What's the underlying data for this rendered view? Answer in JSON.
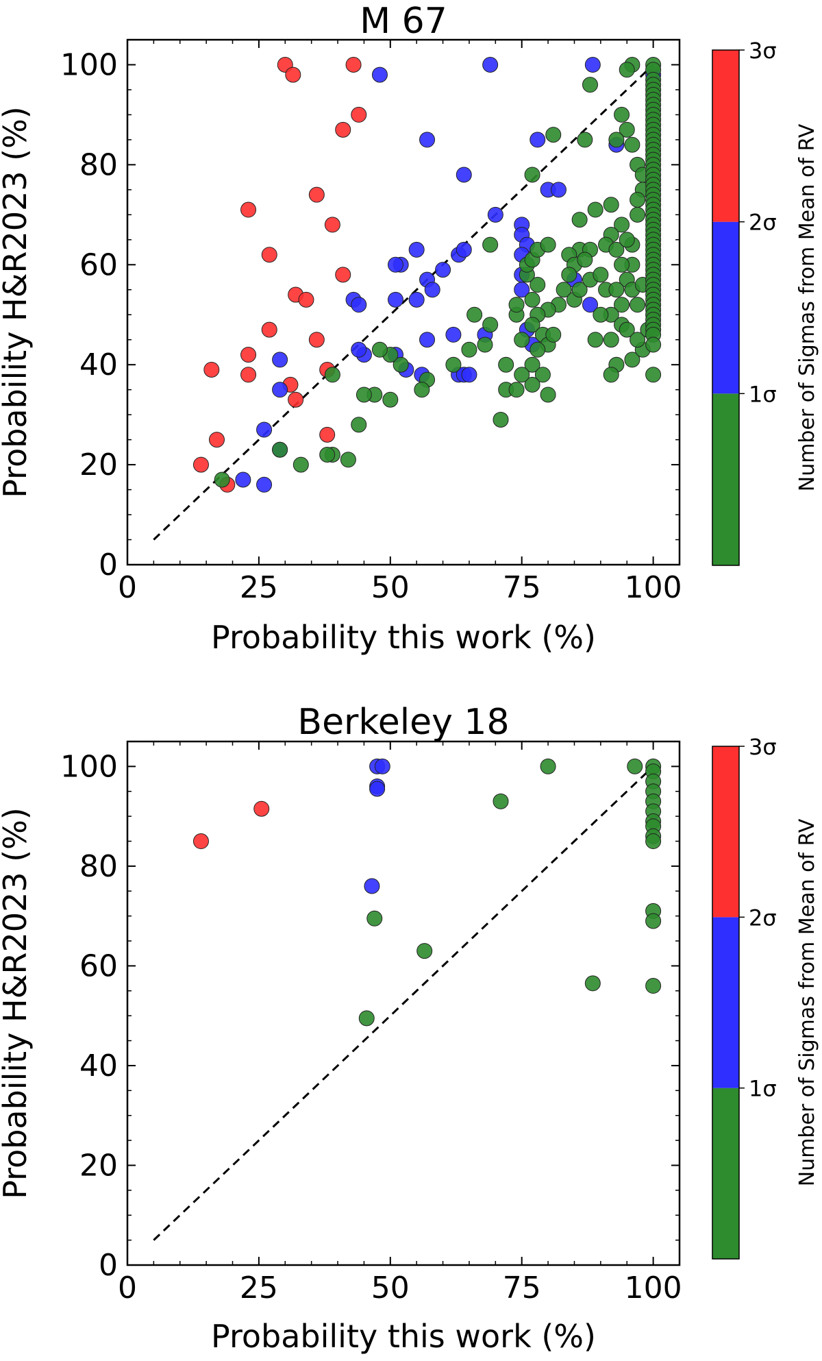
{
  "colors": {
    "green": "#2e8b2e",
    "blue": "#2f2fff",
    "red": "#ff3030",
    "axis": "#000000"
  },
  "chart_data": [
    {
      "type": "scatter",
      "title": "M 67",
      "xlabel": "Probability this work (%)",
      "ylabel": "Probability H&R2023 (%)",
      "xlim": [
        0,
        105
      ],
      "ylim": [
        0,
        105
      ],
      "xticks": [
        0,
        25,
        50,
        75,
        100
      ],
      "yticks": [
        0,
        20,
        40,
        60,
        80,
        100
      ],
      "reference_line": {
        "style": "dashed",
        "from": [
          5,
          5
        ],
        "to": [
          100,
          100
        ]
      },
      "colorbar": {
        "label": "Number of Sigmas from Mean of RV",
        "ticks": [
          "1σ",
          "2σ",
          "3σ"
        ],
        "bins": [
          {
            "color_key": "green",
            "range": "0–1σ"
          },
          {
            "color_key": "blue",
            "range": "1σ–2σ"
          },
          {
            "color_key": "red",
            "range": "2σ–3σ"
          }
        ]
      },
      "series": [
        {
          "name": "2σ–3σ",
          "color_key": "red",
          "points": [
            [
              30,
              100
            ],
            [
              31.5,
              98
            ],
            [
              43,
              100
            ],
            [
              44,
              90
            ],
            [
              41,
              87
            ],
            [
              36,
              74
            ],
            [
              23,
              71
            ],
            [
              27,
              62
            ],
            [
              39,
              68
            ],
            [
              32,
              54
            ],
            [
              34,
              53
            ],
            [
              41,
              58
            ],
            [
              27,
              47
            ],
            [
              36,
              45
            ],
            [
              16,
              39
            ],
            [
              23,
              42
            ],
            [
              23,
              38
            ],
            [
              38,
              39
            ],
            [
              31,
              36
            ],
            [
              32,
              33
            ],
            [
              38,
              26
            ],
            [
              17,
              25
            ],
            [
              14,
              20
            ],
            [
              19,
              16
            ]
          ]
        },
        {
          "name": "1σ–2σ",
          "color_key": "blue",
          "points": [
            [
              48,
              98
            ],
            [
              69,
              100
            ],
            [
              88.5,
              100
            ],
            [
              57,
              85
            ],
            [
              78,
              85
            ],
            [
              64,
              78
            ],
            [
              52,
              60
            ],
            [
              55,
              63
            ],
            [
              51,
              60
            ],
            [
              60,
              59
            ],
            [
              63,
              62
            ],
            [
              64,
              63
            ],
            [
              57,
              57
            ],
            [
              58,
              55
            ],
            [
              51,
              53
            ],
            [
              55,
              53
            ],
            [
              43,
              53
            ],
            [
              44,
              52
            ],
            [
              45,
              42
            ],
            [
              44,
              43
            ],
            [
              51,
              42
            ],
            [
              53,
              39
            ],
            [
              56,
              38
            ],
            [
              57,
              45
            ],
            [
              62,
              46
            ],
            [
              63,
              38
            ],
            [
              64,
              38
            ],
            [
              65,
              38
            ],
            [
              68,
              46
            ],
            [
              70,
              70
            ],
            [
              75,
              68
            ],
            [
              75,
              66
            ],
            [
              76,
              64
            ],
            [
              75,
              62
            ],
            [
              75,
              58
            ],
            [
              75,
              55
            ],
            [
              76,
              47
            ],
            [
              77,
              44
            ],
            [
              80,
              75
            ],
            [
              82,
              75
            ],
            [
              85,
              57
            ],
            [
              88,
              52
            ],
            [
              93,
              84
            ],
            [
              100,
              98
            ],
            [
              29,
              41
            ],
            [
              29,
              35
            ],
            [
              26,
              27
            ],
            [
              29,
              23
            ],
            [
              22,
              17
            ],
            [
              26,
              16
            ]
          ]
        },
        {
          "name": "0–1σ",
          "color_key": "green",
          "points": [
            [
              96,
              100
            ],
            [
              95,
              99
            ],
            [
              88,
              96
            ],
            [
              81,
              86
            ],
            [
              77,
              78
            ],
            [
              87,
              85
            ],
            [
              94,
              90
            ],
            [
              95,
              87
            ],
            [
              93,
              85
            ],
            [
              96,
              84
            ],
            [
              97,
              80
            ],
            [
              98,
              78
            ],
            [
              98,
              75
            ],
            [
              97,
              73
            ],
            [
              97,
              70
            ],
            [
              94,
              68
            ],
            [
              92,
              72
            ],
            [
              89,
              71
            ],
            [
              86,
              69
            ],
            [
              92,
              66
            ],
            [
              91,
              64
            ],
            [
              86,
              63
            ],
            [
              88,
              63
            ],
            [
              84,
              62
            ],
            [
              85,
              60
            ],
            [
              87,
              61
            ],
            [
              93,
              63
            ],
            [
              96,
              64
            ],
            [
              96,
              60
            ],
            [
              95,
              57
            ],
            [
              96,
              55
            ],
            [
              98,
              56
            ],
            [
              97,
              52
            ],
            [
              94,
              52
            ],
            [
              92,
              50
            ],
            [
              94,
              48
            ],
            [
              95,
              47
            ],
            [
              90,
              50
            ],
            [
              89,
              45
            ],
            [
              92,
              45
            ],
            [
              93,
              40
            ],
            [
              96,
              41
            ],
            [
              98,
              43
            ],
            [
              97,
              45
            ],
            [
              99,
              47
            ],
            [
              100,
              38
            ],
            [
              92,
              38
            ],
            [
              83,
              55
            ],
            [
              82,
              52
            ],
            [
              80,
              51
            ],
            [
              78,
              50
            ],
            [
              77,
              48
            ],
            [
              79,
              46
            ],
            [
              80,
              44
            ],
            [
              78,
              43
            ],
            [
              77,
              40
            ],
            [
              79,
              38
            ],
            [
              77,
              36
            ],
            [
              75,
              38
            ],
            [
              72,
              40
            ],
            [
              72,
              35
            ],
            [
              74,
              35
            ],
            [
              71,
              29
            ],
            [
              80,
              34
            ],
            [
              75,
              45
            ],
            [
              74,
              50
            ],
            [
              74,
              52
            ],
            [
              77,
              53
            ],
            [
              78,
              56
            ],
            [
              76,
              58
            ],
            [
              76,
              60
            ],
            [
              77,
              61
            ],
            [
              78,
              63
            ],
            [
              80,
              64
            ],
            [
              69,
              64
            ],
            [
              66,
              50
            ],
            [
              69,
              48
            ],
            [
              68,
              44
            ],
            [
              65,
              43
            ],
            [
              62,
              40
            ],
            [
              57,
              37
            ],
            [
              56,
              35
            ],
            [
              52,
              40
            ],
            [
              50,
              42
            ],
            [
              48,
              43
            ],
            [
              50,
              33
            ],
            [
              47,
              34
            ],
            [
              45,
              34
            ],
            [
              44,
              28
            ],
            [
              42,
              21
            ],
            [
              39,
              22
            ],
            [
              38,
              22
            ],
            [
              39,
              38
            ],
            [
              33,
              20
            ],
            [
              29,
              23
            ],
            [
              18,
              17
            ],
            [
              81,
              46
            ],
            [
              84,
              58
            ],
            [
              85,
              53
            ],
            [
              86,
              55
            ],
            [
              88,
              57
            ],
            [
              90,
              58
            ],
            [
              91,
              55
            ],
            [
              93,
              55
            ],
            [
              94,
              60
            ],
            [
              95,
              65
            ],
            [
              100,
              100
            ],
            [
              100,
              99
            ],
            [
              100,
              97
            ],
            [
              100,
              96
            ],
            [
              100,
              95
            ],
            [
              100,
              94
            ],
            [
              100,
              93
            ],
            [
              100,
              92
            ],
            [
              100,
              91
            ],
            [
              100,
              90
            ],
            [
              100,
              89
            ],
            [
              100,
              88
            ],
            [
              100,
              87
            ],
            [
              100,
              86
            ],
            [
              100,
              85
            ],
            [
              100,
              84
            ],
            [
              100,
              83
            ],
            [
              100,
              82
            ],
            [
              100,
              81
            ],
            [
              100,
              80
            ],
            [
              100,
              79
            ],
            [
              100,
              78
            ],
            [
              100,
              77
            ],
            [
              100,
              76
            ],
            [
              100,
              75
            ],
            [
              100,
              74
            ],
            [
              100,
              73
            ],
            [
              100,
              72
            ],
            [
              100,
              71
            ],
            [
              100,
              70
            ],
            [
              100,
              69
            ],
            [
              100,
              68
            ],
            [
              100,
              67
            ],
            [
              100,
              66
            ],
            [
              100,
              65
            ],
            [
              100,
              64
            ],
            [
              100,
              63
            ],
            [
              100,
              62
            ],
            [
              100,
              61
            ],
            [
              100,
              60
            ],
            [
              100,
              59
            ],
            [
              100,
              58
            ],
            [
              100,
              57
            ],
            [
              100,
              56
            ],
            [
              100,
              55
            ],
            [
              100,
              54
            ],
            [
              100,
              53
            ],
            [
              100,
              52
            ],
            [
              100,
              51
            ],
            [
              100,
              50
            ],
            [
              100,
              49
            ],
            [
              100,
              48
            ],
            [
              100,
              47
            ],
            [
              100,
              46
            ],
            [
              100,
              44
            ]
          ]
        }
      ]
    },
    {
      "type": "scatter",
      "title": "Berkeley 18",
      "xlabel": "Probability this work (%)",
      "ylabel": "Probability H&R2023 (%)",
      "xlim": [
        0,
        105
      ],
      "ylim": [
        0,
        105
      ],
      "xticks": [
        0,
        25,
        50,
        75,
        100
      ],
      "yticks": [
        0,
        20,
        40,
        60,
        80,
        100
      ],
      "reference_line": {
        "style": "dashed",
        "from": [
          5,
          5
        ],
        "to": [
          100,
          100
        ]
      },
      "colorbar": {
        "label": "Number of Sigmas from Mean of RV",
        "ticks": [
          "1σ",
          "2σ",
          "3σ"
        ],
        "bins": [
          {
            "color_key": "green",
            "range": "0–1σ"
          },
          {
            "color_key": "blue",
            "range": "1σ–2σ"
          },
          {
            "color_key": "red",
            "range": "2σ–3σ"
          }
        ]
      },
      "series": [
        {
          "name": "2σ–3σ",
          "color_key": "red",
          "points": [
            [
              14,
              85
            ],
            [
              25.5,
              91.5
            ]
          ]
        },
        {
          "name": "1σ–2σ",
          "color_key": "blue",
          "points": [
            [
              47.5,
              100
            ],
            [
              48.5,
              100
            ],
            [
              47.5,
              96
            ],
            [
              47.5,
              95.5
            ],
            [
              46.5,
              76
            ]
          ]
        },
        {
          "name": "0–1σ",
          "color_key": "green",
          "points": [
            [
              47,
              69.5
            ],
            [
              45.5,
              49.5
            ],
            [
              56.5,
              63
            ],
            [
              71,
              93
            ],
            [
              80,
              100
            ],
            [
              96.5,
              100
            ],
            [
              100,
              100
            ],
            [
              100,
              99
            ],
            [
              100,
              97
            ],
            [
              100,
              95
            ],
            [
              100,
              93
            ],
            [
              100,
              91
            ],
            [
              100,
              89
            ],
            [
              100,
              88
            ],
            [
              100,
              86
            ],
            [
              100,
              85
            ],
            [
              100,
              71
            ],
            [
              100,
              69
            ],
            [
              100,
              56
            ],
            [
              88.5,
              56.5
            ]
          ]
        }
      ]
    }
  ]
}
